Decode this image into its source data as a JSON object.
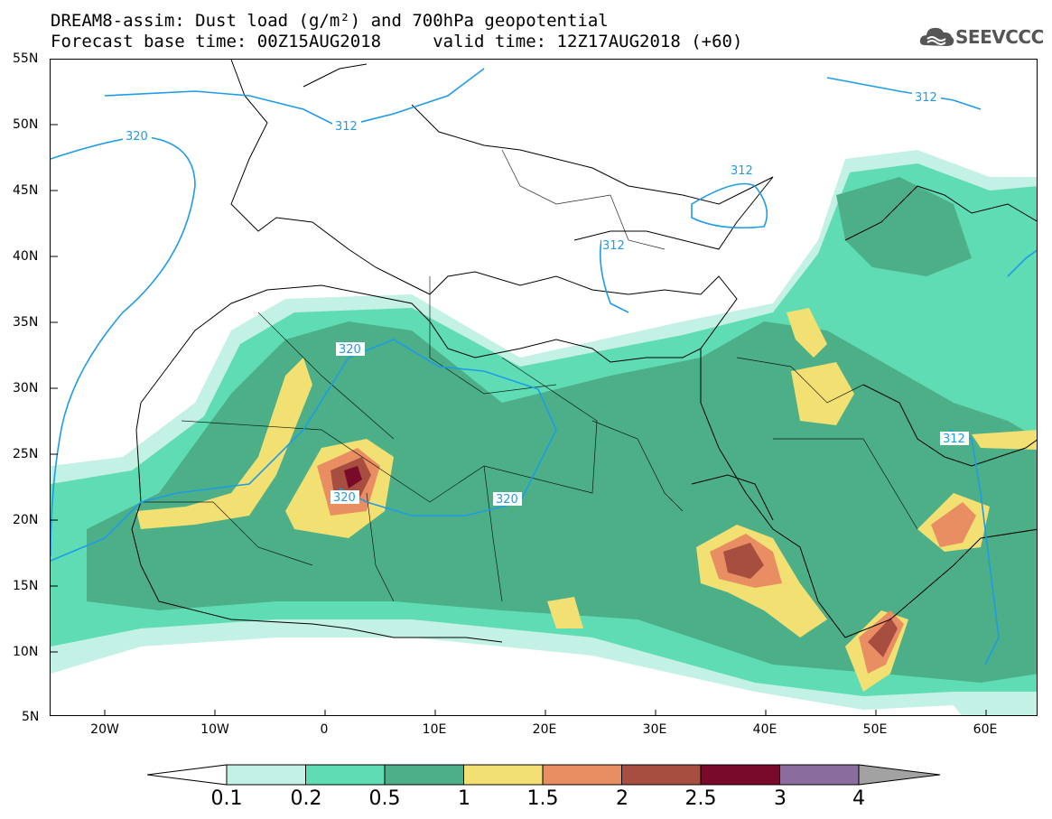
{
  "title": {
    "line1": "DREAM8-assim: Dust load (g/m²) and 700hPa geopotential",
    "line2": "Forecast base time: 00Z15AUG2018     valid time: 12Z17AUG2018 (+60)"
  },
  "logo": {
    "text": "SEEVCCC",
    "icon": "cloud-icon"
  },
  "map": {
    "lat_labels": [
      "55N",
      "50N",
      "45N",
      "40N",
      "35N",
      "30N",
      "25N",
      "20N",
      "15N",
      "10N",
      "5N"
    ],
    "lon_labels": [
      "20W",
      "10W",
      "0",
      "10E",
      "20E",
      "30E",
      "40E",
      "50E",
      "60E"
    ],
    "contour_labels": [
      "320",
      "312",
      "312",
      "320",
      "320",
      "320",
      "312",
      "312",
      "312"
    ],
    "contour_color": "#1e9be6"
  },
  "colorbar": {
    "labels": [
      "0.1",
      "0.2",
      "0.5",
      "1",
      "1.5",
      "2",
      "2.5",
      "3",
      "4"
    ],
    "colors": [
      "#c4f1e5",
      "#5fdcb4",
      "#4caf88",
      "#f3e073",
      "#e98d63",
      "#a84e40",
      "#790a2a",
      "#8a6c9f"
    ],
    "low_arrow_color": "#ffffff",
    "high_arrow_color": "#a2a2a2"
  }
}
